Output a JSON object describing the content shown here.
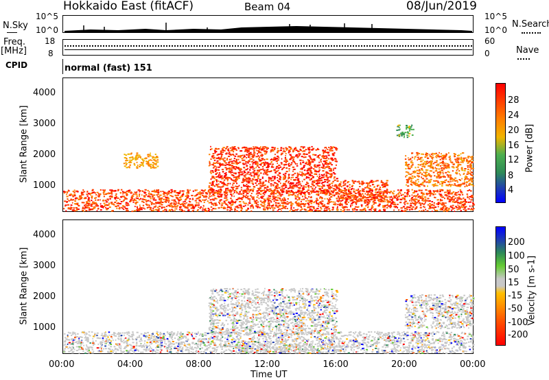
{
  "header": {
    "station": "Hokkaido East (fitACF)",
    "beam": "Beam 04",
    "date": "08/Jun/2019"
  },
  "top_panels": {
    "nsky_label": "N.Sky",
    "nsky_ticks": [
      "10^5",
      "10^0"
    ],
    "nsky_right_ticks": [
      "10^5",
      "10^0"
    ],
    "nsearch_label": "N.Search",
    "freq_label_1": "Freq.",
    "freq_label_2": "[MHz]",
    "freq_ticks": [
      "18",
      "8"
    ],
    "nave_ticks": [
      "60",
      "0"
    ],
    "nave_label": "Nave",
    "cpid_label": "CPID",
    "cpid_value": "normal (fast) 151"
  },
  "x_axis": {
    "label": "Time UT",
    "ticks": [
      "00:00",
      "04:00",
      "08:00",
      "12:00",
      "16:00",
      "20:00",
      "00:00"
    ]
  },
  "colors": {
    "power_scale": [
      "#0000ff",
      "#1f3fb0",
      "#2e8b57",
      "#4caf50",
      "#f0b400",
      "#ff8000",
      "#ff4000",
      "#ff0000"
    ],
    "velocity_scale": [
      "#ff0000",
      "#ff5000",
      "#ff9000",
      "#ffc000",
      "#c8c8c8",
      "#66cc33",
      "#2e8b57",
      "#1f3fb0",
      "#0000ff"
    ]
  },
  "chart_data": [
    {
      "type": "heatmap",
      "title": "",
      "xlabel": "Time UT",
      "ylabel": "Slant Range [km]",
      "x_ticks": [
        "00:00",
        "04:00",
        "08:00",
        "12:00",
        "16:00",
        "20:00",
        "00:00"
      ],
      "y_ticks": [
        1000,
        2000,
        3000,
        4000
      ],
      "ylim": [
        180,
        4500
      ],
      "colorbar_label": "Power [dB]",
      "colorbar_ticks": [
        4,
        8,
        12,
        16,
        20,
        24,
        28
      ],
      "colorbar_range": [
        0,
        32
      ],
      "regions": [
        {
          "t0": 0.0,
          "t1": 24.0,
          "r0": 200,
          "r1": 900,
          "value": 26
        },
        {
          "t0": 3.5,
          "t1": 5.5,
          "r0": 1600,
          "r1": 2100,
          "value": 20
        },
        {
          "t0": 8.5,
          "t1": 16.0,
          "r0": 800,
          "r1": 2300,
          "value": 27
        },
        {
          "t0": 16.0,
          "t1": 19.0,
          "r0": 500,
          "r1": 1200,
          "value": 26
        },
        {
          "t0": 20.0,
          "t1": 24.0,
          "r0": 1000,
          "r1": 2100,
          "value": 23
        },
        {
          "t0": 19.5,
          "t1": 20.5,
          "r0": 2600,
          "r1": 3000,
          "value": 14
        }
      ]
    },
    {
      "type": "heatmap",
      "title": "",
      "xlabel": "Time UT",
      "ylabel": "Slant Range [km]",
      "x_ticks": [
        "00:00",
        "04:00",
        "08:00",
        "12:00",
        "16:00",
        "20:00",
        "00:00"
      ],
      "y_ticks": [
        1000,
        2000,
        3000,
        4000
      ],
      "ylim": [
        180,
        4500
      ],
      "colorbar_label": "Velocity [m s-1]",
      "colorbar_ticks": [
        200,
        100,
        50,
        15,
        -15,
        -50,
        -100,
        -200
      ],
      "colorbar_range": [
        -250,
        250
      ],
      "regions": [
        {
          "t0": 0.0,
          "t1": 24.0,
          "r0": 200,
          "r1": 900,
          "value": 0
        },
        {
          "t0": 8.5,
          "t1": 16.0,
          "r0": 800,
          "r1": 2300,
          "value": 0
        },
        {
          "t0": 10.0,
          "t1": 16.0,
          "r0": 200,
          "r1": 500,
          "value": 30
        },
        {
          "t0": 20.0,
          "t1": 24.0,
          "r0": 1000,
          "r1": 2100,
          "value": 0
        }
      ]
    }
  ]
}
